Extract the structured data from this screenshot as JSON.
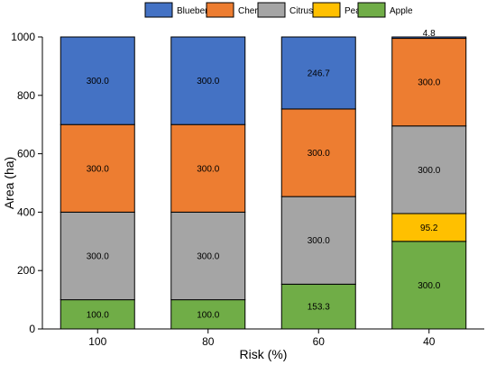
{
  "chart_data": {
    "type": "bar",
    "stacked": true,
    "title": "",
    "xlabel": "Risk (%)",
    "ylabel": "Area (ha)",
    "categories": [
      "100",
      "80",
      "60",
      "40"
    ],
    "ylim": [
      0,
      1000
    ],
    "yticks": [
      0,
      200,
      400,
      600,
      800,
      1000
    ],
    "grid": false,
    "legend_position": "top",
    "series": [
      {
        "name": "Apple",
        "color": "#70ad47",
        "values": [
          100.0,
          100.0,
          153.3,
          300.0
        ],
        "labels": [
          "100.0",
          "100.0",
          "153.3",
          "300.0"
        ]
      },
      {
        "name": "Peach",
        "color": "#ffc000",
        "values": [
          0,
          0,
          0,
          95.2
        ],
        "labels": [
          "",
          "",
          "",
          "95.2"
        ]
      },
      {
        "name": "Citrus",
        "color": "#a5a5a5",
        "values": [
          300.0,
          300.0,
          300.0,
          300.0
        ],
        "labels": [
          "300.0",
          "300.0",
          "300.0",
          "300.0"
        ]
      },
      {
        "name": "Cherry",
        "color": "#ed7d31",
        "values": [
          300.0,
          300.0,
          300.0,
          300.0
        ],
        "labels": [
          "300.0",
          "300.0",
          "300.0",
          "300.0"
        ]
      },
      {
        "name": "Blueberry",
        "color": "#4472c4",
        "values": [
          300.0,
          300.0,
          246.7,
          4.8
        ],
        "labels": [
          "300.0",
          "300.0",
          "246.7",
          "4.8"
        ]
      }
    ],
    "legend_order": [
      "Blueberry",
      "Cherry",
      "Citrus",
      "Peach",
      "Apple"
    ]
  }
}
